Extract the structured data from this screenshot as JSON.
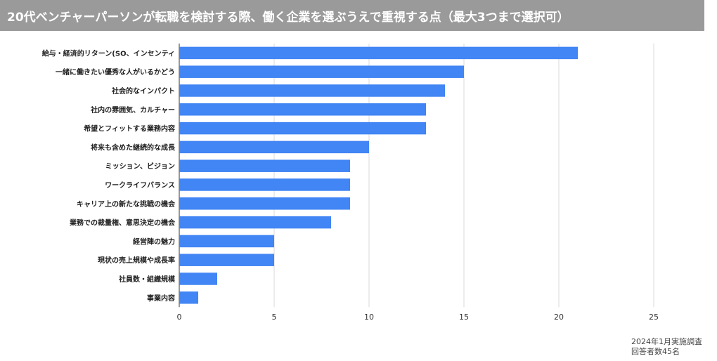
{
  "title": "20代ベンチャーパーソンが転職を検討する際、働く企業を選ぶうえで重視する点（最大3つまで選択可）",
  "footnote": {
    "line1": "2024年1月実施調査",
    "line2": "回答者数45名"
  },
  "colors": {
    "bar": "#4285f4",
    "title_bg": "#9a9a9a",
    "grid": "#d9d9d9"
  },
  "chart_data": {
    "type": "bar",
    "orientation": "horizontal",
    "categories": [
      "給与・経済的リターン(SO、インセンティ",
      "一緒に働きたい優秀な人がいるかどう",
      "社会的なインパクト",
      "社内の雰囲気、カルチャー",
      "希望とフィットする業務内容",
      "将来も含めた継続的な成長",
      "ミッション、ビジョン",
      "ワークライフバランス",
      "キャリア上の新たな挑戦の機会",
      "業務での裁量権、意思決定の機会",
      "経営陣の魅力",
      "現状の売上規模や成長率",
      "社員数・組織規模",
      "事業内容"
    ],
    "values": [
      21,
      15,
      14,
      13,
      13,
      10,
      9,
      9,
      9,
      8,
      5,
      5,
      2,
      1
    ],
    "xlim": [
      0,
      25
    ],
    "xticks": [
      0,
      5,
      10,
      15,
      20,
      25
    ],
    "grid": true,
    "legend": "none"
  }
}
